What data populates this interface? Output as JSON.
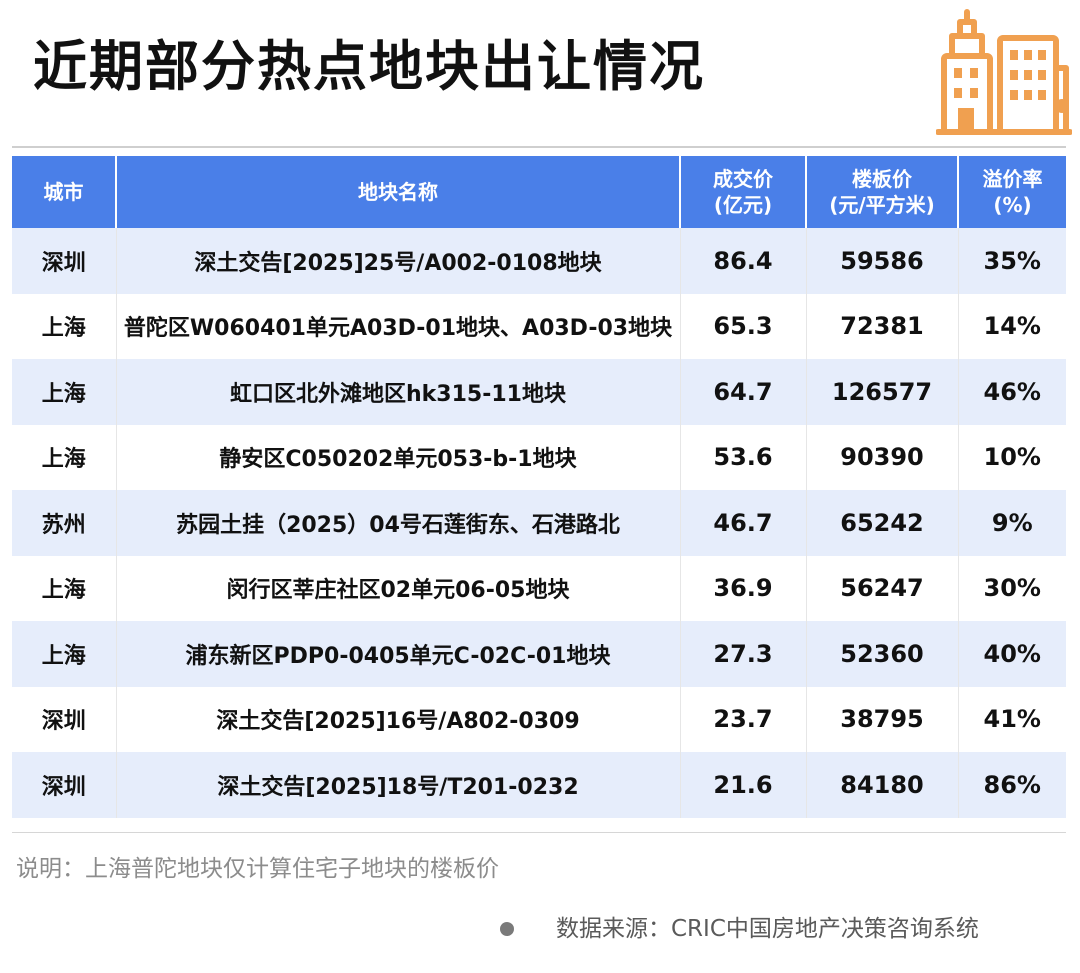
{
  "title": "近期部分热点地块出让情况",
  "icon": "building-icon",
  "colors": {
    "header_bg": "#4a7fe8",
    "row_shade": "#e6edfb",
    "icon_orange": "#f0a050"
  },
  "table": {
    "headers": [
      {
        "line1": "城市",
        "line2": ""
      },
      {
        "line1": "地块名称",
        "line2": ""
      },
      {
        "line1": "成交价",
        "line2": "(亿元)"
      },
      {
        "line1": "楼板价",
        "line2": "(元/平方米)"
      },
      {
        "line1": "溢价率",
        "line2": "(%)"
      }
    ],
    "rows": [
      {
        "city": "深圳",
        "parcel": "深土交告[2025]25号/A002-0108地块",
        "price": "86.4",
        "floor_price": "59586",
        "premium": "35%"
      },
      {
        "city": "上海",
        "parcel": "普陀区W060401单元A03D-01地块、A03D-03地块",
        "price": "65.3",
        "floor_price": "72381",
        "premium": "14%"
      },
      {
        "city": "上海",
        "parcel": "虹口区北外滩地区hk315-11地块",
        "price": "64.7",
        "floor_price": "126577",
        "premium": "46%"
      },
      {
        "city": "上海",
        "parcel": "静安区C050202单元053-b-1地块",
        "price": "53.6",
        "floor_price": "90390",
        "premium": "10%"
      },
      {
        "city": "苏州",
        "parcel": "苏园土挂（2025）04号石莲街东、石港路北",
        "price": "46.7",
        "floor_price": "65242",
        "premium": "9%"
      },
      {
        "city": "上海",
        "parcel": "闵行区莘庄社区02单元06-05地块",
        "price": "36.9",
        "floor_price": "56247",
        "premium": "30%"
      },
      {
        "city": "上海",
        "parcel": "浦东新区PDP0-0405单元C-02C-01地块",
        "price": "27.3",
        "floor_price": "52360",
        "premium": "40%"
      },
      {
        "city": "深圳",
        "parcel": "深土交告[2025]16号/A802-0309",
        "price": "23.7",
        "floor_price": "38795",
        "premium": "41%"
      },
      {
        "city": "深圳",
        "parcel": "深土交告[2025]18号/T201-0232",
        "price": "21.6",
        "floor_price": "84180",
        "premium": "86%"
      }
    ]
  },
  "note": "说明：上海普陀地块仅计算住宅子地块的楼板价",
  "source": "数据来源：CRIC中国房地产决策咨询系统"
}
